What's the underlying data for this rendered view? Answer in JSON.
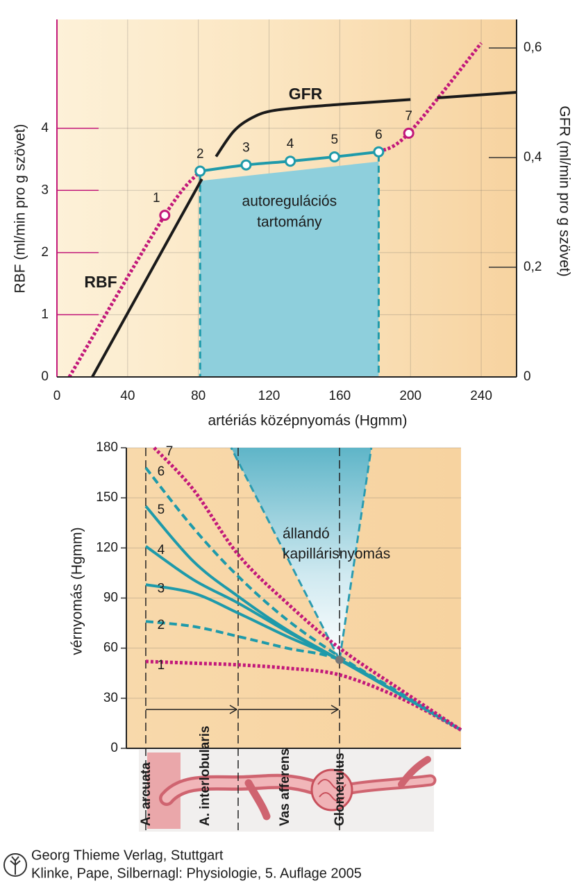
{
  "chart_data": [
    {
      "type": "line",
      "xlabel": "artériás középnyomás (Hgmm)",
      "ylabel": "RBF (ml/min pro g szövet)",
      "y2label": "GFR (ml/min pro g szövet)",
      "xlim": [
        0,
        260
      ],
      "xticks": [
        0,
        40,
        80,
        120,
        160,
        200,
        240
      ],
      "ylim": [
        0,
        5.75
      ],
      "yticks": [
        0,
        1,
        2,
        3,
        4
      ],
      "y2lim": [
        0,
        0.652
      ],
      "y2ticks": [
        0,
        {
          "value": 0.2,
          "label": "0,2"
        },
        {
          "value": 0.4,
          "label": "0,4"
        },
        {
          "value": 0.6,
          "label": "0,6"
        }
      ],
      "grid": true,
      "band": {
        "label": [
          "autoregulációs",
          "tartomány"
        ],
        "x": [
          81,
          182
        ],
        "color": "#8ecfdc"
      },
      "series": [
        {
          "name": "RBF",
          "color": "#c2187a",
          "highlight_color": "#1e9aaa",
          "style": "dotted",
          "x": [
            7,
            61,
            81,
            107,
            132,
            157,
            182,
            199,
            240
          ],
          "values": [
            0,
            2.6,
            3.31,
            3.41,
            3.47,
            3.54,
            3.62,
            3.92,
            5.37
          ],
          "point_labels": [
            null,
            "1",
            "2",
            "3",
            "4",
            "5",
            "6",
            "7",
            null
          ]
        },
        {
          "name": "GFR",
          "color": "#1a1a1a",
          "style": "solid",
          "axis": "y2",
          "x": [
            20,
            82,
            86,
            90,
            100,
            110,
            121,
            140,
            160,
            200,
            205,
            215,
            260
          ],
          "values": [
            0,
            0.361,
            null,
            0.402,
            0.448,
            0.472,
            0.485,
            0.492,
            0.497,
            0.506,
            null,
            0.509,
            0.519
          ]
        }
      ]
    },
    {
      "type": "line",
      "ylabel": "vérnyomás (Hgmm)",
      "xlim": [
        0,
        100
      ],
      "ylim": [
        0,
        180
      ],
      "yticks": [
        0,
        30,
        60,
        90,
        120,
        150,
        180
      ],
      "grid": true,
      "x": [
        5.8,
        20,
        33.4,
        48,
        63.7,
        82,
        100
      ],
      "boundaries": [
        5.8,
        33.4,
        63.7
      ],
      "sections": [
        {
          "label": "A. arcuata",
          "x": 5.8
        },
        {
          "label": "A. interlobularis",
          "x": 23.4
        },
        {
          "label": "Vas afferens",
          "x": 47.3
        },
        {
          "label": "Glomerulus",
          "x": 63.7
        }
      ],
      "point": {
        "x": 63.7,
        "y": 53,
        "color": "#777777"
      },
      "cone": {
        "label": [
          "állandó",
          "kapillárisnyomás"
        ],
        "x": [
          31.3,
          73.2
        ],
        "color": "#2a9bb0"
      },
      "series": [
        {
          "name": "1",
          "color": "#c2187a",
          "style": "dotted",
          "values": [
            52,
            51,
            50,
            48,
            44,
            30,
            11
          ]
        },
        {
          "name": "2",
          "color": "#1e9aaa",
          "style": "dashed",
          "values": [
            76,
            73,
            67,
            60,
            53,
            32,
            11
          ]
        },
        {
          "name": "3",
          "color": "#1e9aaa",
          "style": "solid",
          "values": [
            98,
            93,
            81,
            67,
            53,
            32,
            11
          ]
        },
        {
          "name": "4",
          "color": "#1e9aaa",
          "style": "solid",
          "values": [
            121,
            101,
            87,
            70,
            53,
            32,
            11
          ]
        },
        {
          "name": "5",
          "color": "#1e9aaa",
          "style": "solid",
          "values": [
            145,
            112,
            91,
            71,
            53,
            32,
            11
          ]
        },
        {
          "name": "6",
          "color": "#1e9aaa",
          "style": "dashed",
          "values": [
            168,
            132,
            103,
            77,
            55,
            33,
            11
          ]
        },
        {
          "name": "7",
          "color": "#c2187a",
          "style": "dotted",
          "x": [
            8.3,
            20,
            33.4,
            48,
            63.7,
            82,
            100
          ],
          "values": [
            180,
            155,
            116,
            87,
            60,
            35,
            11
          ]
        }
      ]
    }
  ],
  "footer": {
    "publisher": "Georg Thieme Verlag, Stuttgart",
    "citation": "Klinke, Pape, Silbernagl: Physiologie, 5. Auflage 2005"
  }
}
